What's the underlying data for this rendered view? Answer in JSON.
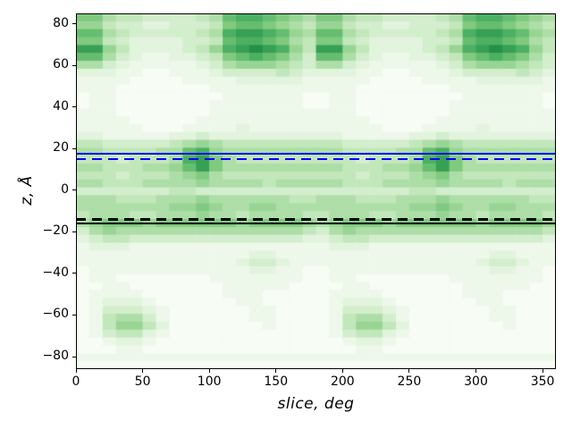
{
  "figure": {
    "background": "#ffffff"
  },
  "axis": {
    "xlabel": "slice, deg",
    "ylabel": "z, Å",
    "x_ticks": [
      {
        "value": 0,
        "label": "0"
      },
      {
        "value": 50,
        "label": "50"
      },
      {
        "value": 100,
        "label": "100"
      },
      {
        "value": 150,
        "label": "150"
      },
      {
        "value": 200,
        "label": "200"
      },
      {
        "value": 250,
        "label": "250"
      },
      {
        "value": 300,
        "label": "300"
      },
      {
        "value": 350,
        "label": "350"
      }
    ],
    "y_ticks": [
      {
        "value": 80,
        "label": "80"
      },
      {
        "value": 60,
        "label": "60"
      },
      {
        "value": 40,
        "label": "40"
      },
      {
        "value": 20,
        "label": "20"
      },
      {
        "value": 0,
        "label": "0"
      },
      {
        "value": -20,
        "label": "−20"
      },
      {
        "value": -40,
        "label": "−40"
      },
      {
        "value": -60,
        "label": "−60"
      },
      {
        "value": -80,
        "label": "−80"
      }
    ]
  },
  "chart_data": {
    "type": "heatmap",
    "title": "",
    "xlabel": "slice, deg",
    "ylabel": "z, Å",
    "x_range_deg": [
      0,
      360
    ],
    "z_range_angstrom": [
      -86,
      85
    ],
    "n_cols": 36,
    "n_rows": 45,
    "x_period_deg": 180,
    "x_period_repeat": 2,
    "grid": "off",
    "legend": null,
    "colormap": {
      "name": "Greens",
      "stops": [
        {
          "t": 0.0,
          "c": "#f7fcf5"
        },
        {
          "t": 0.125,
          "c": "#e5f5e0"
        },
        {
          "t": 0.25,
          "c": "#c7e9c0"
        },
        {
          "t": 0.375,
          "c": "#a1d99b"
        },
        {
          "t": 0.5,
          "c": "#74c476"
        },
        {
          "t": 0.625,
          "c": "#41ab5d"
        },
        {
          "t": 0.75,
          "c": "#238b45"
        },
        {
          "t": 0.875,
          "c": "#006d2c"
        },
        {
          "t": 1.0,
          "c": "#00441b"
        }
      ]
    },
    "intensity_scale_max": 15,
    "rows_hex_half_period": [
      "775443333458998765",
      "664332233347887654",
      "885433333459aa9865",
      "774322223348998754",
      "aa6422223469aba964",
      "885321122347898753",
      "553211111235666543",
      "222110011123333432",
      "111100001111222221",
      "111000000011111111",
      "011000000001111110",
      "011000000011111110",
      "111000000011111111",
      "111100000111111111",
      "111110001111211111",
      "221111122322222222",
      "443333345654444444",
      "554444558965555555",
      "444344459a75444444",
      "554445568a75555555",
      "444344456754444444",
      "554445555655554555",
      "333333344333333333",
      "555444555655555544",
      "555555566765566555",
      "455544555655455554",
      "567776777777677776",
      "356555555555555554",
      "234433333333333332",
      "122211111111111111",
      "111111111111122111",
      "111111111111233211",
      "011111111111122110",
      "011000000011111110",
      "001100000001111100",
      "011110000001110000",
      "012221000000110000",
      "013332100000011000",
      "014553100000011000",
      "014664200000001000",
      "013442100000000000",
      "001221000000000000",
      "000110000000000000",
      "111111111111111111",
      "000000000000000000"
    ],
    "reference_lines": [
      {
        "id": "blue-solid-line",
        "z": 17.5,
        "color": "#0000ff",
        "style": "solid",
        "width": 2.5
      },
      {
        "id": "blue-dashed-line",
        "z": 15.0,
        "color": "#0000ff",
        "style": "dashed",
        "width": 2.5
      },
      {
        "id": "black-dashed-line",
        "z": -14.0,
        "color": "#000000",
        "style": "dashed",
        "width": 2.5
      },
      {
        "id": "black-solid-line",
        "z": -16.0,
        "color": "#000000",
        "style": "solid",
        "width": 2.5
      }
    ]
  }
}
